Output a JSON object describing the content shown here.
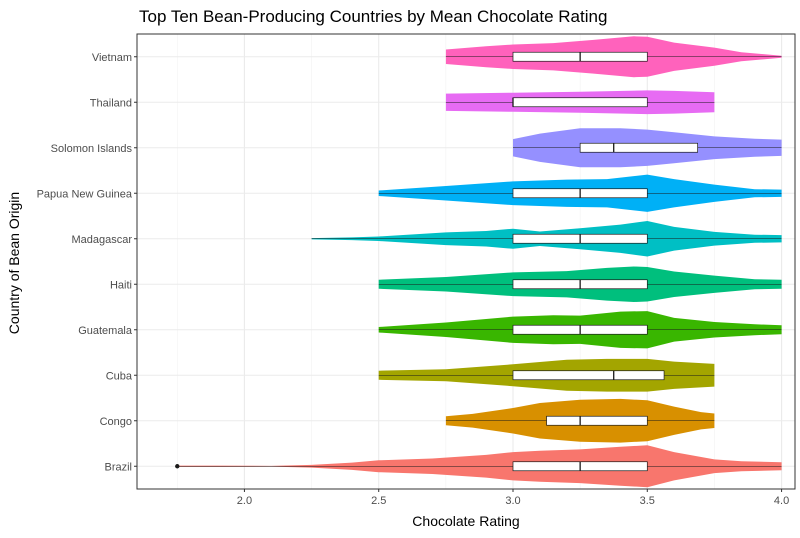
{
  "chart_data": {
    "type": "violin",
    "title": "Top Ten Bean-Producing Countries by Mean Chocolate Rating",
    "xlabel": "Chocolate Rating",
    "ylabel": "Country of Bean Origin",
    "xlim": [
      1.6,
      4.05
    ],
    "x_ticks": [
      2.0,
      2.5,
      3.0,
      3.5,
      4.0
    ],
    "x_tick_labels": [
      "2.0",
      "2.5",
      "3.0",
      "3.5",
      "4.0"
    ],
    "grid": true,
    "legend": "none",
    "categories": [
      "Brazil",
      "Congo",
      "Cuba",
      "Guatemala",
      "Haiti",
      "Madagascar",
      "Papua New Guinea",
      "Solomon Islands",
      "Thailand",
      "Vietnam"
    ],
    "series": [
      {
        "category": "Brazil",
        "color": "#F8766D",
        "min": 1.75,
        "q1": 3.0,
        "median": 3.25,
        "q3": 3.5,
        "max": 4.0,
        "outliers": [
          1.75
        ],
        "density": [
          [
            1.75,
            0.03
          ],
          [
            1.9,
            0.03
          ],
          [
            2.1,
            0.015
          ],
          [
            2.25,
            0.06
          ],
          [
            2.4,
            0.16
          ],
          [
            2.5,
            0.26
          ],
          [
            2.7,
            0.34
          ],
          [
            2.9,
            0.5
          ],
          [
            3.0,
            0.62
          ],
          [
            3.1,
            0.68
          ],
          [
            3.25,
            0.74
          ],
          [
            3.4,
            0.86
          ],
          [
            3.5,
            0.92
          ],
          [
            3.6,
            0.62
          ],
          [
            3.75,
            0.3
          ],
          [
            3.85,
            0.22
          ],
          [
            4.0,
            0.18
          ]
        ]
      },
      {
        "category": "Congo",
        "color": "#D89000",
        "min": 2.75,
        "q1": 3.125,
        "median": 3.25,
        "q3": 3.5,
        "max": 3.75,
        "outliers": [],
        "density": [
          [
            2.75,
            0.2
          ],
          [
            2.85,
            0.3
          ],
          [
            3.0,
            0.56
          ],
          [
            3.1,
            0.78
          ],
          [
            3.25,
            0.92
          ],
          [
            3.4,
            0.96
          ],
          [
            3.5,
            0.9
          ],
          [
            3.6,
            0.62
          ],
          [
            3.7,
            0.38
          ],
          [
            3.75,
            0.32
          ]
        ]
      },
      {
        "category": "Cuba",
        "color": "#A3A500",
        "min": 2.5,
        "q1": 3.0,
        "median": 3.375,
        "q3": 3.5625,
        "max": 3.75,
        "outliers": [],
        "density": [
          [
            2.5,
            0.2
          ],
          [
            2.75,
            0.26
          ],
          [
            3.0,
            0.48
          ],
          [
            3.2,
            0.68
          ],
          [
            3.35,
            0.72
          ],
          [
            3.5,
            0.72
          ],
          [
            3.6,
            0.6
          ],
          [
            3.75,
            0.5
          ]
        ]
      },
      {
        "category": "Guatemala",
        "color": "#39B600",
        "min": 2.5,
        "q1": 3.0,
        "median": 3.25,
        "q3": 3.5,
        "max": 4.0,
        "outliers": [],
        "density": [
          [
            2.5,
            0.12
          ],
          [
            2.75,
            0.32
          ],
          [
            3.0,
            0.58
          ],
          [
            3.15,
            0.64
          ],
          [
            3.25,
            0.62
          ],
          [
            3.4,
            0.8
          ],
          [
            3.5,
            0.82
          ],
          [
            3.6,
            0.52
          ],
          [
            3.75,
            0.34
          ],
          [
            3.9,
            0.24
          ],
          [
            4.0,
            0.2
          ]
        ]
      },
      {
        "category": "Haiti",
        "color": "#00BF7D",
        "min": 2.5,
        "q1": 3.0,
        "median": 3.25,
        "q3": 3.5,
        "max": 4.0,
        "outliers": [],
        "density": [
          [
            2.5,
            0.2
          ],
          [
            2.75,
            0.32
          ],
          [
            3.0,
            0.52
          ],
          [
            3.2,
            0.58
          ],
          [
            3.35,
            0.72
          ],
          [
            3.45,
            0.78
          ],
          [
            3.5,
            0.76
          ],
          [
            3.6,
            0.56
          ],
          [
            3.75,
            0.38
          ],
          [
            3.9,
            0.22
          ],
          [
            4.0,
            0.2
          ]
        ]
      },
      {
        "category": "Madagascar",
        "color": "#00BFC4",
        "min": 2.25,
        "q1": 3.0,
        "median": 3.25,
        "q3": 3.5,
        "max": 4.0,
        "outliers": [],
        "density": [
          [
            2.25,
            0.03
          ],
          [
            2.4,
            0.06
          ],
          [
            2.5,
            0.1
          ],
          [
            2.75,
            0.28
          ],
          [
            2.9,
            0.34
          ],
          [
            3.0,
            0.44
          ],
          [
            3.1,
            0.32
          ],
          [
            3.25,
            0.46
          ],
          [
            3.4,
            0.62
          ],
          [
            3.5,
            0.78
          ],
          [
            3.6,
            0.52
          ],
          [
            3.75,
            0.3
          ],
          [
            3.9,
            0.18
          ],
          [
            4.0,
            0.16
          ]
        ]
      },
      {
        "category": "Papua New Guinea",
        "color": "#00B0F6",
        "min": 2.5,
        "q1": 3.0,
        "median": 3.25,
        "q3": 3.5,
        "max": 4.0,
        "outliers": [],
        "density": [
          [
            2.5,
            0.12
          ],
          [
            2.75,
            0.32
          ],
          [
            3.0,
            0.52
          ],
          [
            3.2,
            0.6
          ],
          [
            3.35,
            0.62
          ],
          [
            3.5,
            0.82
          ],
          [
            3.6,
            0.62
          ],
          [
            3.75,
            0.38
          ],
          [
            3.9,
            0.18
          ],
          [
            4.0,
            0.16
          ]
        ]
      },
      {
        "category": "Solomon Islands",
        "color": "#9590FF",
        "min": 3.0,
        "q1": 3.25,
        "median": 3.375,
        "q3": 3.6875,
        "max": 4.0,
        "outliers": [],
        "density": [
          [
            3.0,
            0.38
          ],
          [
            3.1,
            0.62
          ],
          [
            3.25,
            0.86
          ],
          [
            3.4,
            0.86
          ],
          [
            3.5,
            0.8
          ],
          [
            3.6,
            0.68
          ],
          [
            3.75,
            0.5
          ],
          [
            3.9,
            0.4
          ],
          [
            4.0,
            0.36
          ]
        ]
      },
      {
        "category": "Thailand",
        "color": "#E76BF3",
        "min": 2.75,
        "q1": 3.0,
        "median": 3.0,
        "q3": 3.5,
        "max": 3.75,
        "outliers": [],
        "density": [
          [
            2.75,
            0.38
          ],
          [
            3.0,
            0.42
          ],
          [
            3.25,
            0.46
          ],
          [
            3.5,
            0.52
          ],
          [
            3.6,
            0.5
          ],
          [
            3.75,
            0.44
          ]
        ]
      },
      {
        "category": "Vietnam",
        "color": "#FF62BC",
        "min": 2.75,
        "q1": 3.0,
        "median": 3.25,
        "q3": 3.5,
        "max": 4.0,
        "outliers": [],
        "density": [
          [
            2.75,
            0.32
          ],
          [
            2.9,
            0.46
          ],
          [
            3.0,
            0.54
          ],
          [
            3.15,
            0.6
          ],
          [
            3.3,
            0.74
          ],
          [
            3.45,
            0.9
          ],
          [
            3.5,
            0.88
          ],
          [
            3.6,
            0.62
          ],
          [
            3.75,
            0.4
          ],
          [
            3.85,
            0.2
          ],
          [
            4.0,
            0.04
          ]
        ]
      }
    ]
  }
}
